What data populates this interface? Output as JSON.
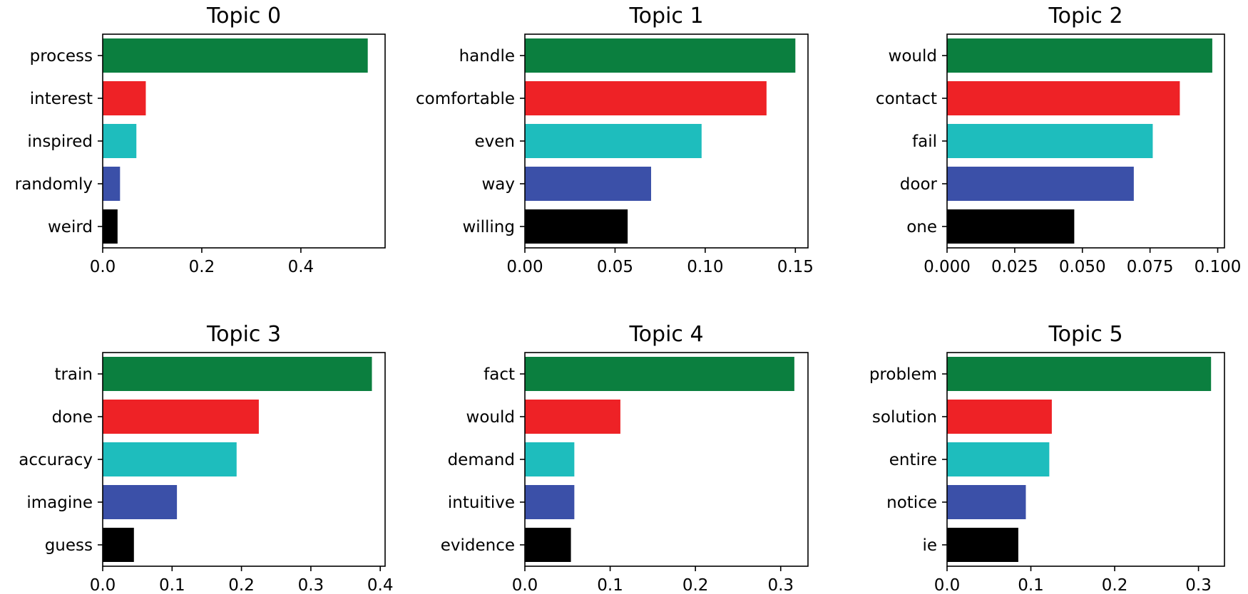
{
  "colors": [
    "#0b7f3f",
    "#ee2226",
    "#1ebdbd",
    "#3b50a8",
    "#000000"
  ],
  "chart_data": [
    {
      "type": "bar",
      "orientation": "horizontal",
      "title": "Topic 0",
      "categories": [
        "process",
        "interest",
        "inspired",
        "randomly",
        "weird"
      ],
      "values": [
        0.535,
        0.087,
        0.068,
        0.035,
        0.03
      ],
      "xlim": [
        0,
        0.57
      ],
      "xticks": [
        0.0,
        0.2,
        0.4
      ],
      "xtick_labels": [
        "0.0",
        "0.2",
        "0.4"
      ]
    },
    {
      "type": "bar",
      "orientation": "horizontal",
      "title": "Topic 1",
      "categories": [
        "handle",
        "comfortable",
        "even",
        "way",
        "willing"
      ],
      "values": [
        0.15,
        0.134,
        0.098,
        0.07,
        0.057
      ],
      "xlim": [
        0,
        0.157
      ],
      "xticks": [
        0.0,
        0.05,
        0.1,
        0.15
      ],
      "xtick_labels": [
        "0.00",
        "0.05",
        "0.10",
        "0.15"
      ]
    },
    {
      "type": "bar",
      "orientation": "horizontal",
      "title": "Topic 2",
      "categories": [
        "would",
        "contact",
        "fail",
        "door",
        "one"
      ],
      "values": [
        0.098,
        0.086,
        0.076,
        0.069,
        0.047
      ],
      "xlim": [
        0,
        0.1025
      ],
      "xticks": [
        0.0,
        0.025,
        0.05,
        0.075,
        0.1
      ],
      "xtick_labels": [
        "0.000",
        "0.025",
        "0.050",
        "0.075",
        "0.100"
      ]
    },
    {
      "type": "bar",
      "orientation": "horizontal",
      "title": "Topic 3",
      "categories": [
        "train",
        "done",
        "accuracy",
        "imagine",
        "guess"
      ],
      "values": [
        0.388,
        0.225,
        0.193,
        0.107,
        0.045
      ],
      "xlim": [
        0,
        0.407
      ],
      "xticks": [
        0.0,
        0.1,
        0.2,
        0.3,
        0.4
      ],
      "xtick_labels": [
        "0.0",
        "0.1",
        "0.2",
        "0.3",
        "0.4"
      ]
    },
    {
      "type": "bar",
      "orientation": "horizontal",
      "title": "Topic 4",
      "categories": [
        "fact",
        "would",
        "demand",
        "intuitive",
        "evidence"
      ],
      "values": [
        0.316,
        0.112,
        0.058,
        0.058,
        0.054
      ],
      "xlim": [
        0,
        0.332
      ],
      "xticks": [
        0.0,
        0.1,
        0.2,
        0.3
      ],
      "xtick_labels": [
        "0.0",
        "0.1",
        "0.2",
        "0.3"
      ]
    },
    {
      "type": "bar",
      "orientation": "horizontal",
      "title": "Topic 5",
      "categories": [
        "problem",
        "solution",
        "entire",
        "notice",
        "ie"
      ],
      "values": [
        0.315,
        0.125,
        0.122,
        0.094,
        0.085
      ],
      "xlim": [
        0,
        0.331
      ],
      "xticks": [
        0.0,
        0.1,
        0.2,
        0.3
      ],
      "xtick_labels": [
        "0.0",
        "0.1",
        "0.2",
        "0.3"
      ]
    }
  ]
}
